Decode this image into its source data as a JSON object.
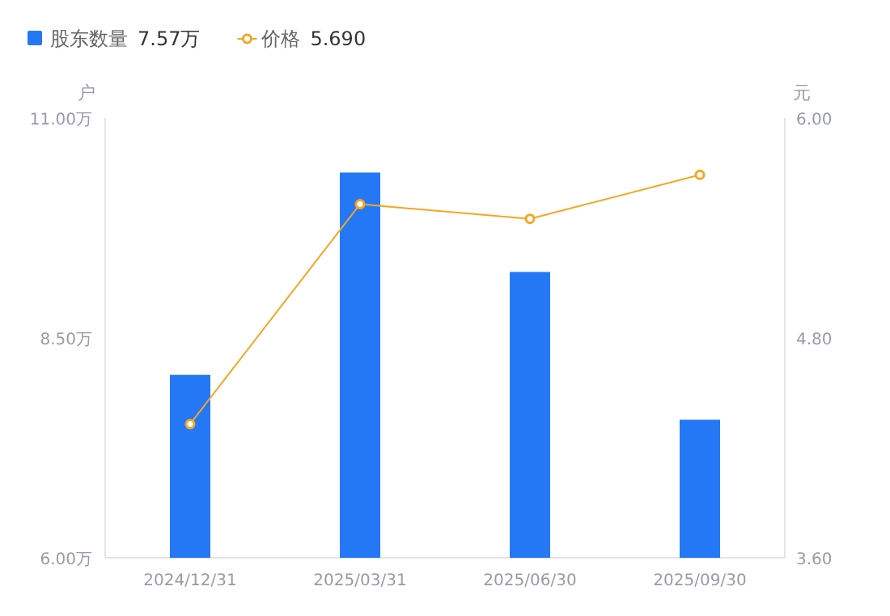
{
  "chart_data": {
    "type": "bar",
    "ylabel": "户",
    "y2label": "元",
    "categories": [
      "2024/12/31",
      "2025/03/31",
      "2025/06/30",
      "2025/09/30"
    ],
    "series": [
      {
        "name": "股东数量",
        "color": "#2578f5",
        "values": [
          8.08,
          10.38,
          9.25,
          7.57
        ]
      },
      {
        "name": "价格",
        "color": "#f5a623",
        "type": "line",
        "axis": "y2",
        "marker": "circle",
        "values": [
          4.33,
          5.53,
          5.45,
          5.69
        ]
      }
    ],
    "ylim": [
      6,
      11
    ],
    "yticks": [
      {
        "value": 6,
        "label": "6.00万"
      },
      {
        "value": 8.5,
        "label": "8.50万"
      },
      {
        "value": 11,
        "label": "11.00万"
      }
    ],
    "y2lim": [
      3.6,
      6
    ],
    "y2ticks": [
      {
        "value": 3.6,
        "label": "3.60"
      },
      {
        "value": 4.8,
        "label": "4.80"
      },
      {
        "value": 6,
        "label": "6.00"
      }
    ],
    "legend": "top left",
    "annotations": [
      "7.57万",
      "5.690"
    ]
  }
}
